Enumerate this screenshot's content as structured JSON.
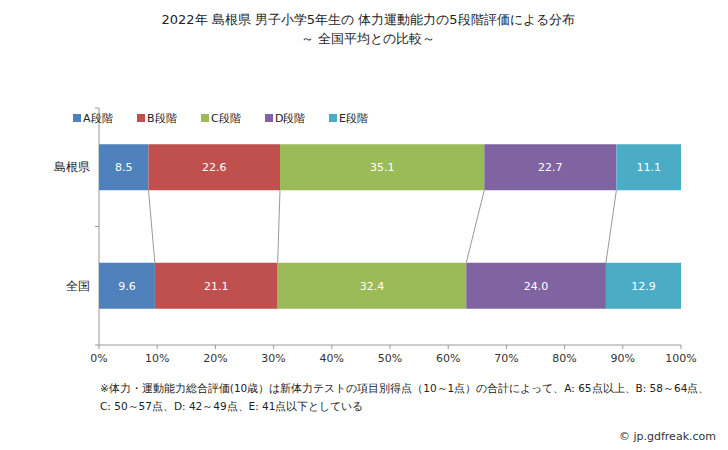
{
  "chart_data": {
    "type": "bar",
    "title": "2022年 島根県 男子小学5年生の 体力運動能力の5段階評価による分布",
    "subtitle": "～ 全国平均との比較～",
    "orientation": "horizontal",
    "stacked": true,
    "data_labels": true,
    "grid": false,
    "legend": "top-left",
    "categories": [
      "島根県",
      "全国"
    ],
    "series": [
      {
        "name": "A段階",
        "color": "#4f81bd",
        "values": [
          8.5,
          9.6
        ]
      },
      {
        "name": "B段階",
        "color": "#c0504d",
        "values": [
          22.6,
          21.1
        ]
      },
      {
        "name": "C段階",
        "color": "#9bbb59",
        "values": [
          35.1,
          32.4
        ]
      },
      {
        "name": "D段階",
        "color": "#8064a2",
        "values": [
          22.7,
          24.0
        ],
        "value_labels": [
          "22.7",
          "24.0"
        ]
      },
      {
        "name": "E段階",
        "color": "#4bacc6",
        "values": [
          11.1,
          12.9
        ]
      }
    ],
    "xlim": [
      0,
      100
    ],
    "xticks": [
      {
        "value": 0,
        "label": "0%"
      },
      {
        "value": 10,
        "label": "10%"
      },
      {
        "value": 20,
        "label": "20%"
      },
      {
        "value": 30,
        "label": "30%"
      },
      {
        "value": 40,
        "label": "40%"
      },
      {
        "value": 50,
        "label": "50%"
      },
      {
        "value": 60,
        "label": "60%"
      },
      {
        "value": 70,
        "label": "70%"
      },
      {
        "value": 80,
        "label": "80%"
      },
      {
        "value": 90,
        "label": "90%"
      },
      {
        "value": 100,
        "label": "100%"
      }
    ],
    "annotations": [
      "※体力・運動能力総合評価(10歳）は新体力テストの項目別得点（10～1点）の合計によって、A: 65点以上、B: 58～64点、",
      "C: 50～57点、D: 42～49点、E: 41点以下としている",
      "© jp.gdfreak.com"
    ]
  }
}
